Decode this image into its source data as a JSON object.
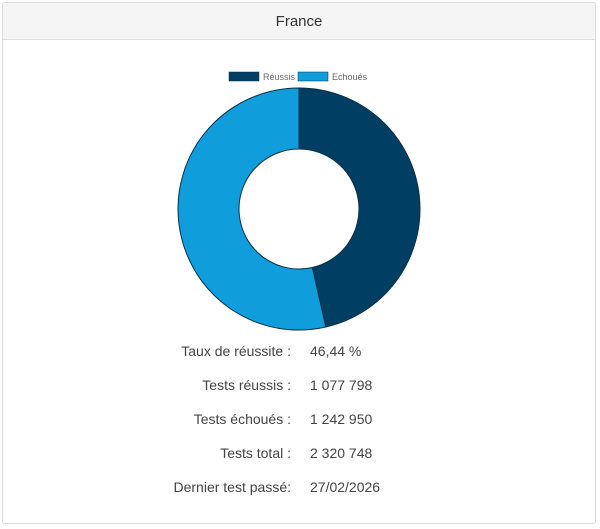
{
  "panel": {
    "title": "France"
  },
  "chart_data": {
    "type": "pie",
    "variant": "doughnut",
    "categories": [
      "Réussis",
      "Echoués"
    ],
    "values": [
      1077798,
      1242950
    ],
    "colors": [
      "#003f63",
      "#109ddb"
    ],
    "legend": "top"
  },
  "stats": [
    {
      "label": "Taux de réussite :",
      "value": "46,44 %"
    },
    {
      "label": "Tests réussis :",
      "value": "1 077 798"
    },
    {
      "label": "Tests échoués :",
      "value": "1 242 950"
    },
    {
      "label": "Tests total :",
      "value": "2 320 748"
    },
    {
      "label": "Dernier test passé:",
      "value": "27/02/2026"
    }
  ]
}
